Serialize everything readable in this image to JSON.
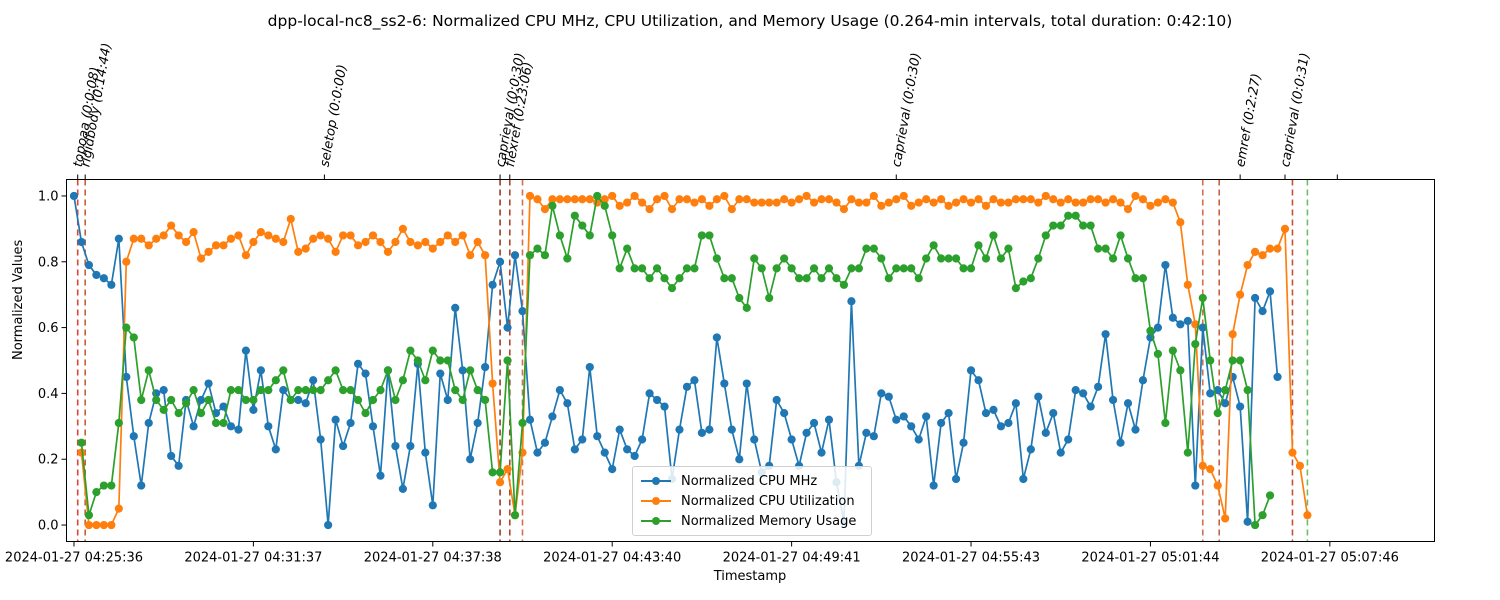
{
  "chart_data": {
    "type": "line",
    "title": "dpp-local-nc8_ss2-6: Normalized CPU MHz, CPU Utilization, and Memory Usage (0.264-min intervals, total duration: 0:42:10)",
    "xlabel": "Timestamp",
    "ylabel": "Normalized Values",
    "xlim": [
      -1.0,
      182.0
    ],
    "ylim": [
      -0.05,
      1.05
    ],
    "x_tick_positions": [
      0,
      24,
      48,
      72,
      96,
      120,
      144,
      168
    ],
    "x_tick_labels": [
      "2024-01-27 04:25:36",
      "2024-01-27 04:31:37",
      "2024-01-27 04:37:38",
      "2024-01-27 04:43:40",
      "2024-01-27 04:49:41",
      "2024-01-27 04:55:43",
      "2024-01-27 05:01:44",
      "2024-01-27 05:07:46"
    ],
    "y_ticks": [
      0.0,
      0.2,
      0.4,
      0.6,
      0.8,
      1.0
    ],
    "y_tick_labels": [
      "0.0",
      "0.2",
      "0.4",
      "0.6",
      "0.8",
      "1.0"
    ],
    "grid": false,
    "legend_position": "lower center",
    "series": [
      {
        "name": "Normalized CPU MHz",
        "color": "#1f77b4",
        "values": [
          1.0,
          0.86,
          0.79,
          0.76,
          0.75,
          0.73,
          0.87,
          0.45,
          0.27,
          0.12,
          0.31,
          0.4,
          0.41,
          0.21,
          0.18,
          0.38,
          0.3,
          0.38,
          0.43,
          0.34,
          0.36,
          0.3,
          0.29,
          0.53,
          0.35,
          0.47,
          0.3,
          0.23,
          0.41,
          0.38,
          0.38,
          0.37,
          0.44,
          0.26,
          0.0,
          0.32,
          0.24,
          0.31,
          0.49,
          0.46,
          0.3,
          0.15,
          0.47,
          0.24,
          0.11,
          0.24,
          0.49,
          0.22,
          0.06,
          0.46,
          0.38,
          0.66,
          0.47,
          0.2,
          0.31,
          0.48,
          0.73,
          0.8,
          0.6,
          0.82,
          0.65,
          0.32,
          0.22,
          0.25,
          0.33,
          0.41,
          0.37,
          0.23,
          0.26,
          0.48,
          0.27,
          0.22,
          0.17,
          0.29,
          0.23,
          0.21,
          0.26,
          0.4,
          0.38,
          0.36,
          0.14,
          0.29,
          0.42,
          0.44,
          0.28,
          0.29,
          0.57,
          0.43,
          0.29,
          0.2,
          0.43,
          0.26,
          0.16,
          0.18,
          0.38,
          0.34,
          0.26,
          0.18,
          0.28,
          0.31,
          0.22,
          0.32,
          0.13,
          0.01,
          0.68,
          0.18,
          0.28,
          0.27,
          0.4,
          0.39,
          0.32,
          0.33,
          0.3,
          0.26,
          0.33,
          0.12,
          0.31,
          0.34,
          0.14,
          0.25,
          0.47,
          0.44,
          0.34,
          0.35,
          0.3,
          0.31,
          0.37,
          0.14,
          0.23,
          0.39,
          0.28,
          0.34,
          0.22,
          0.26,
          0.41,
          0.4,
          0.36,
          0.42,
          0.58,
          0.38,
          0.25,
          0.37,
          0.29,
          0.44,
          0.57,
          0.6,
          0.79,
          0.63,
          0.61,
          0.62,
          0.12,
          0.6,
          0.4,
          0.41,
          0.37,
          0.45,
          0.36,
          0.01,
          0.69,
          0.65,
          0.71,
          0.45
        ]
      },
      {
        "name": "Normalized CPU Utilization",
        "color": "#ff7f0e",
        "values": [
          null,
          0.22,
          0.0,
          0.0,
          0.0,
          0.0,
          0.05,
          0.8,
          0.87,
          0.87,
          0.85,
          0.87,
          0.88,
          0.91,
          0.88,
          0.86,
          0.89,
          0.81,
          0.83,
          0.85,
          0.85,
          0.87,
          0.88,
          0.82,
          0.86,
          0.89,
          0.88,
          0.87,
          0.86,
          0.93,
          0.83,
          0.84,
          0.87,
          0.88,
          0.87,
          0.83,
          0.88,
          0.88,
          0.85,
          0.86,
          0.88,
          0.86,
          0.83,
          0.86,
          0.9,
          0.86,
          0.85,
          0.86,
          0.84,
          0.86,
          0.88,
          0.86,
          0.88,
          0.82,
          0.86,
          0.82,
          0.43,
          0.13,
          0.17,
          0.03,
          0.22,
          1.0,
          0.99,
          0.96,
          0.99,
          0.99,
          0.99,
          0.99,
          0.99,
          0.99,
          0.98,
          0.99,
          1.0,
          0.97,
          0.98,
          1.0,
          0.98,
          0.96,
          0.99,
          1.0,
          0.96,
          0.99,
          0.99,
          0.98,
          0.99,
          0.97,
          0.99,
          1.0,
          0.96,
          0.99,
          0.99,
          0.98,
          0.98,
          0.98,
          0.98,
          0.99,
          0.98,
          0.99,
          1.0,
          0.98,
          0.99,
          0.99,
          0.98,
          0.96,
          0.99,
          0.98,
          0.98,
          1.0,
          0.97,
          0.98,
          0.99,
          1.0,
          0.97,
          0.98,
          0.99,
          0.98,
          0.99,
          0.97,
          0.98,
          0.99,
          0.98,
          0.99,
          0.97,
          0.99,
          0.98,
          0.98,
          0.99,
          0.99,
          0.99,
          0.98,
          1.0,
          0.99,
          0.98,
          0.99,
          0.98,
          0.98,
          0.99,
          0.99,
          0.98,
          0.99,
          0.98,
          0.96,
          1.0,
          0.99,
          0.97,
          0.98,
          0.99,
          0.98,
          0.92,
          0.73,
          0.61,
          0.18,
          0.17,
          0.12,
          0.02,
          0.58,
          0.7,
          0.79,
          0.83,
          0.82,
          0.84,
          0.84,
          0.9,
          0.22,
          0.18,
          0.03
        ]
      },
      {
        "name": "Normalized Memory Usage",
        "color": "#2ca02c",
        "values": [
          null,
          0.25,
          0.03,
          0.1,
          0.12,
          0.12,
          0.31,
          0.6,
          0.57,
          0.38,
          0.47,
          0.38,
          0.35,
          0.38,
          0.34,
          0.37,
          0.41,
          0.34,
          0.38,
          0.31,
          0.31,
          0.41,
          0.41,
          0.38,
          0.38,
          0.41,
          0.41,
          0.44,
          0.47,
          0.38,
          0.41,
          0.41,
          0.41,
          0.41,
          0.44,
          0.47,
          0.41,
          0.41,
          0.38,
          0.34,
          0.38,
          0.41,
          0.47,
          0.38,
          0.44,
          0.53,
          0.5,
          0.44,
          0.53,
          0.5,
          0.5,
          0.41,
          0.38,
          0.47,
          0.41,
          0.38,
          0.16,
          0.16,
          0.5,
          0.03,
          0.31,
          0.82,
          0.84,
          0.82,
          0.97,
          0.88,
          0.81,
          0.94,
          0.91,
          0.88,
          1.0,
          0.97,
          0.88,
          0.78,
          0.84,
          0.78,
          0.78,
          0.75,
          0.78,
          0.75,
          0.72,
          0.75,
          0.78,
          0.78,
          0.88,
          0.88,
          0.81,
          0.75,
          0.75,
          0.69,
          0.66,
          0.81,
          0.78,
          0.69,
          0.78,
          0.81,
          0.78,
          0.75,
          0.75,
          0.78,
          0.75,
          0.78,
          0.75,
          0.73,
          0.78,
          0.78,
          0.84,
          0.84,
          0.81,
          0.75,
          0.78,
          0.78,
          0.78,
          0.75,
          0.81,
          0.85,
          0.81,
          0.81,
          0.81,
          0.78,
          0.78,
          0.85,
          0.81,
          0.88,
          0.81,
          0.84,
          0.72,
          0.74,
          0.75,
          0.81,
          0.88,
          0.91,
          0.91,
          0.94,
          0.94,
          0.91,
          0.91,
          0.84,
          0.84,
          0.81,
          0.88,
          0.81,
          0.75,
          0.75,
          0.59,
          0.52,
          0.31,
          0.53,
          0.47,
          0.22,
          0.55,
          0.69,
          0.5,
          0.34,
          0.41,
          0.5,
          0.5,
          0.41,
          0.0,
          0.03,
          0.09
        ]
      }
    ],
    "annotations": [
      {
        "label": "topoaa (0:0:08)",
        "x": 0.5,
        "color": "#e03020"
      },
      {
        "label": "rigidbody (0:14:44)",
        "x": 1.5,
        "color": "#c05020"
      },
      {
        "label": "seletop (0:0:00)",
        "x": 57.0,
        "color": "#8b2a10"
      },
      {
        "label": "caprieval (0:0:30)",
        "x": 58.3,
        "color": "#b03010"
      },
      {
        "label": "flexref (0:23:06)",
        "x": 60.0,
        "color": "#d06040"
      },
      {
        "label": "caprieval (0:0:30)",
        "x": 151.0,
        "color": "#d06040"
      },
      {
        "label": "emref (0:2:27)",
        "x": 153.2,
        "color": "#c05030"
      },
      {
        "label": "caprieval (0:0:31)",
        "x": 163.0,
        "color": "#c04020"
      },
      {
        "label": "",
        "x": 165.0,
        "color": "#5cb85c"
      }
    ],
    "annotation_label_x": [
      0.5,
      1.5,
      33.5,
      57.0,
      58.3,
      110.0,
      156.0,
      162.0,
      169.0
    ]
  }
}
